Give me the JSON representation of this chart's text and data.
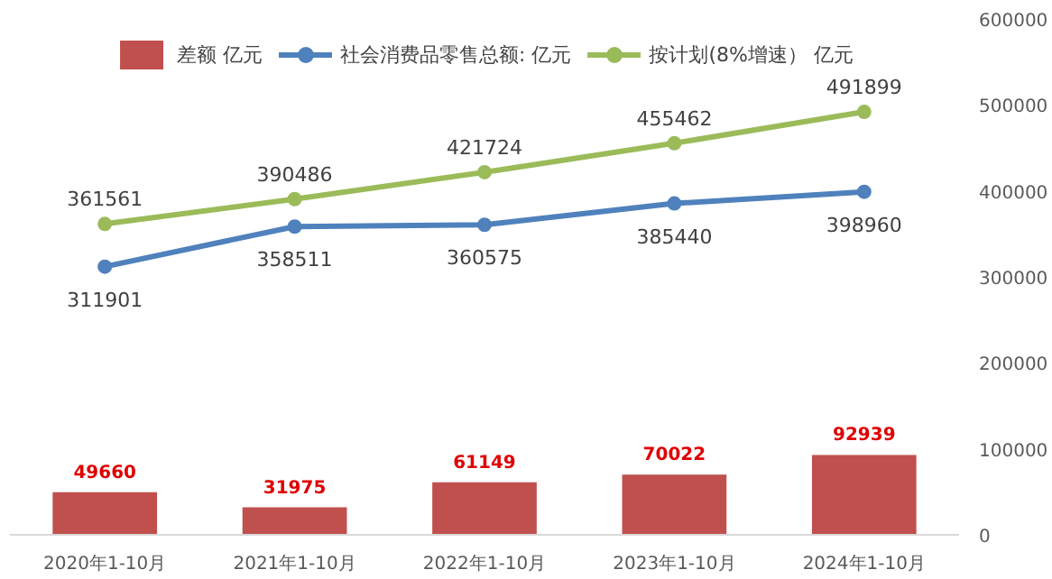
{
  "chart_data": {
    "type": "bar",
    "categories": [
      "2020年1-10月",
      "2021年1-10月",
      "2022年1-10月",
      "2023年1-10月",
      "2024年1-10月"
    ],
    "series": [
      {
        "name": "差额 亿元",
        "color": "#c0504d",
        "values": [
          49660,
          31975,
          61149,
          70022,
          92939
        ]
      },
      {
        "name": "社会消费品零售总额: 亿元",
        "type": "line",
        "color": "#4f81bd",
        "values": [
          311901,
          358511,
          360575,
          385440,
          398960
        ]
      },
      {
        "name": "按计划(8%增速） 亿元",
        "type": "line",
        "color": "#9bbb59",
        "values": [
          361561,
          390486,
          421724,
          455462,
          491899
        ]
      }
    ],
    "ylim": [
      0,
      600000
    ],
    "yticks": [
      0,
      100000,
      200000,
      300000,
      400000,
      500000,
      600000
    ],
    "data_labels": true,
    "legend": "top",
    "grid": false,
    "marker": "circle"
  }
}
